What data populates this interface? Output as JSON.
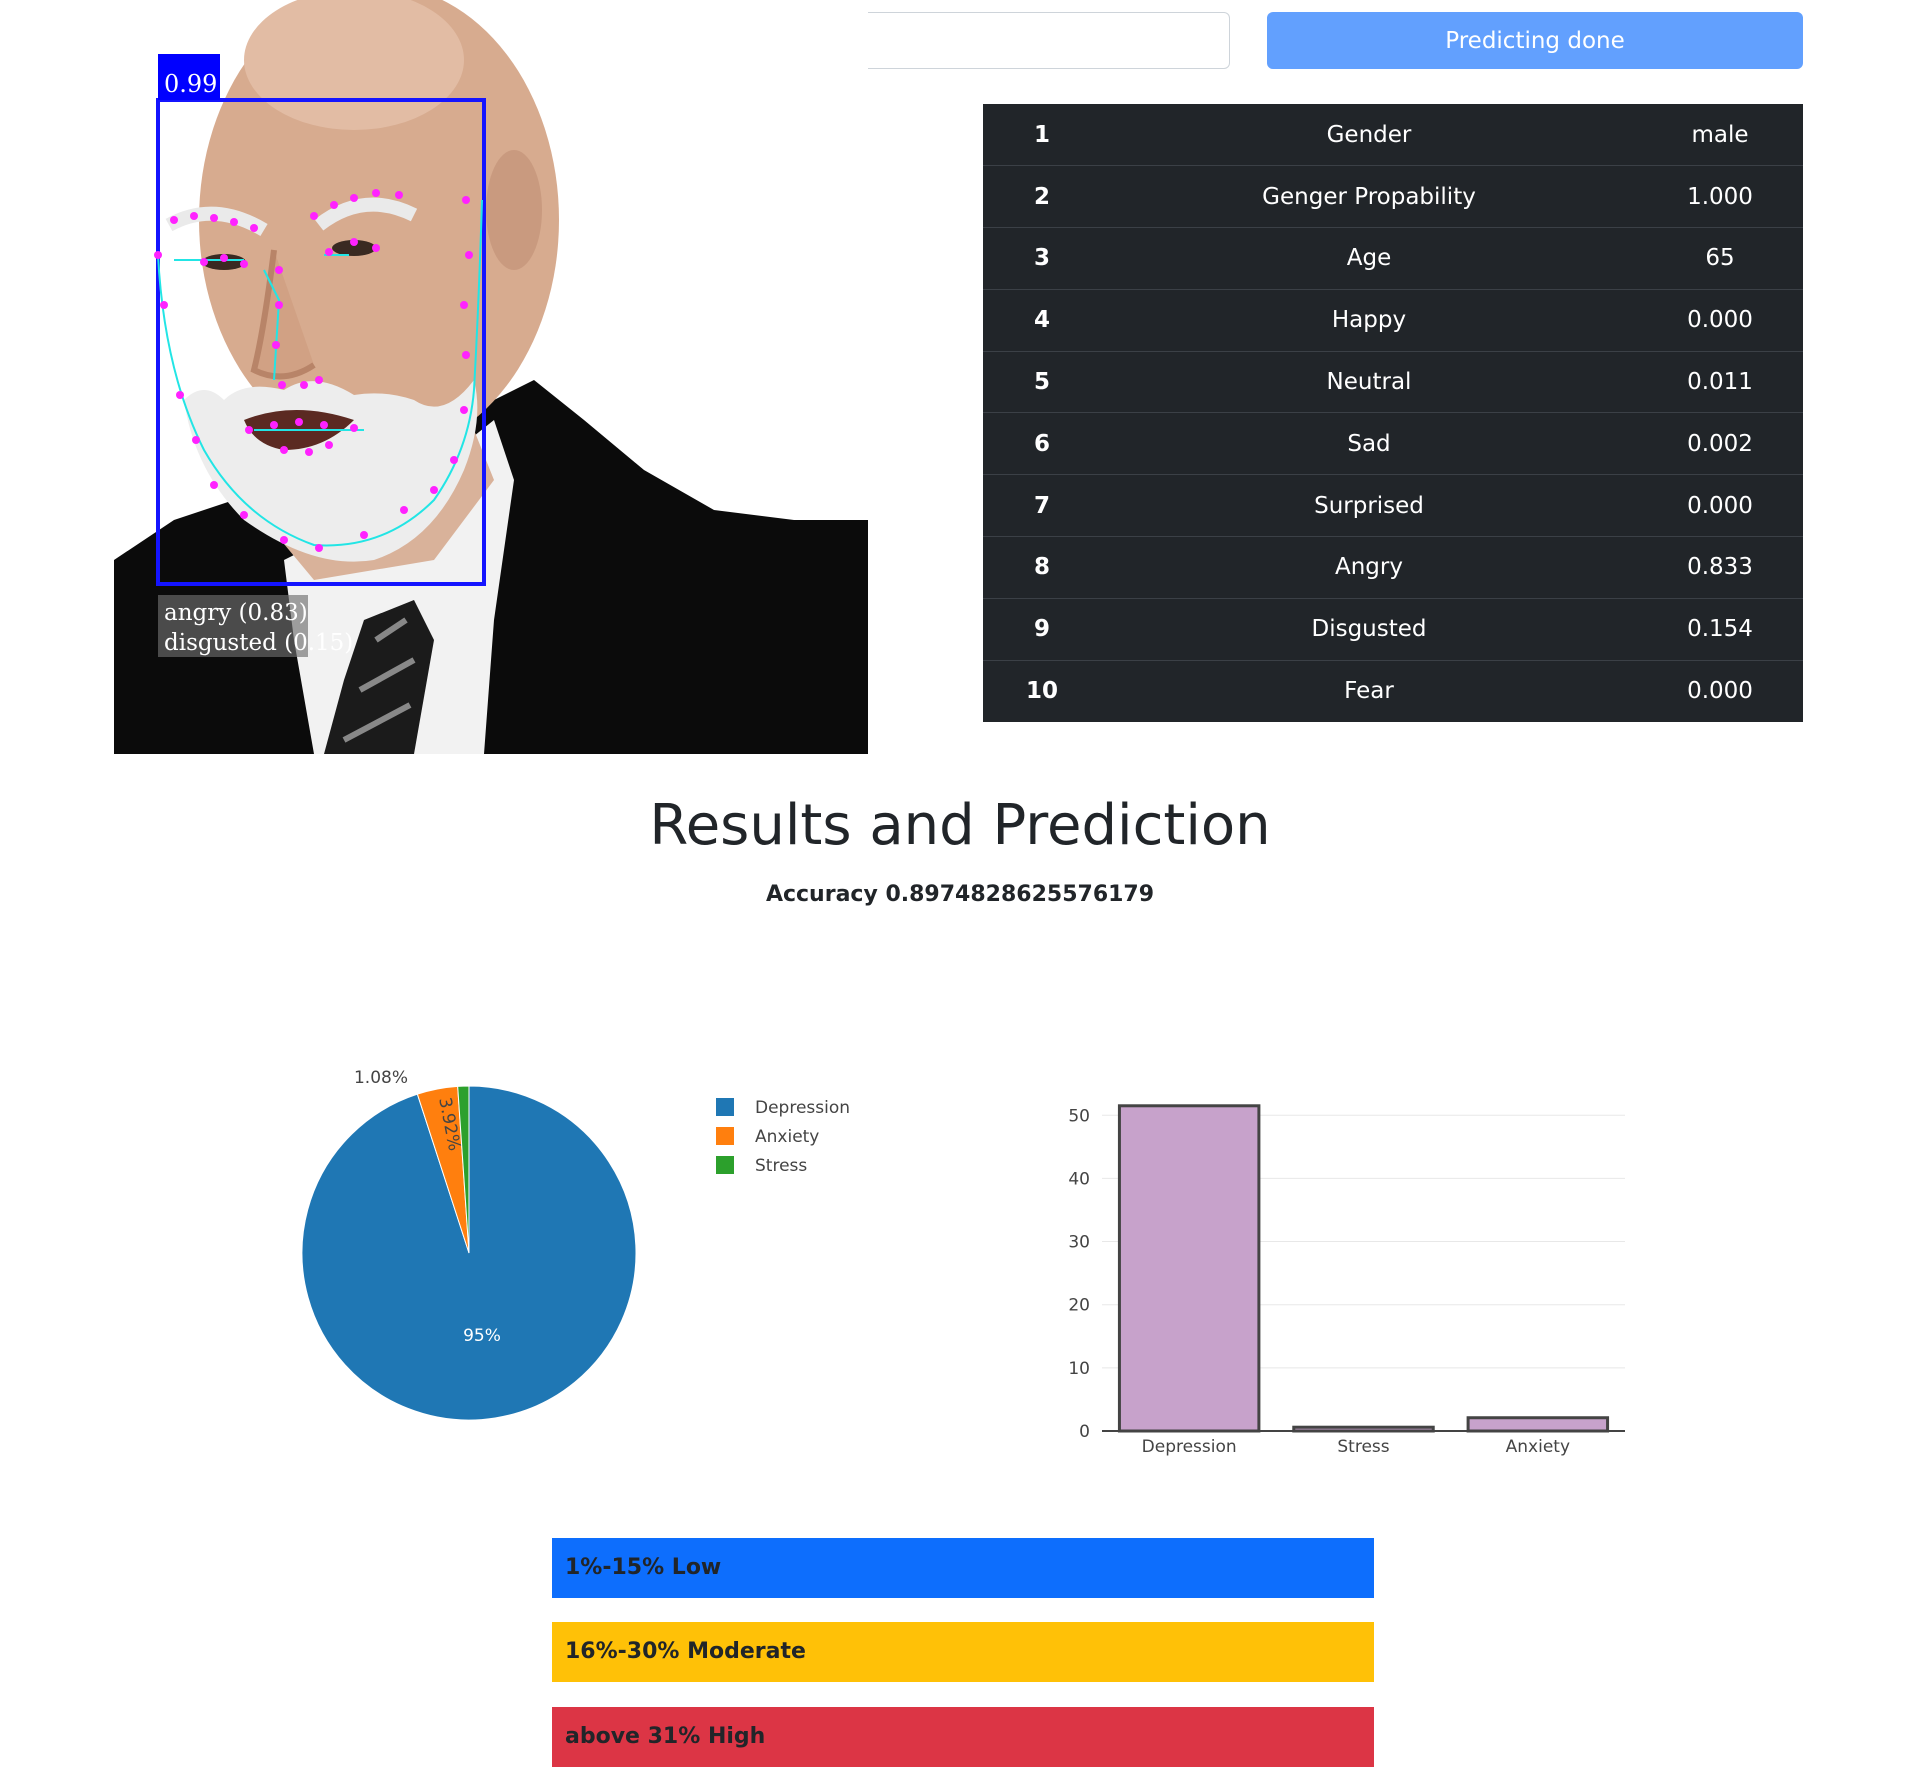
{
  "colors": {
    "primary_button": "#62a0fe",
    "table_bg": "#212529",
    "pie_depression": "#1f77b4",
    "pie_anxiety": "#ff7f0e",
    "pie_stress": "#2ca02c",
    "bar_fill": "#c7a2cb",
    "level_low": "#0d6efd",
    "level_moderate": "#ffc107",
    "level_high": "#dc3545"
  },
  "face_image": {
    "box_score": "0.99",
    "caption_line1": "angry (0.83)",
    "caption_line2": "disgusted (0.15)"
  },
  "controls": {
    "predict_button_label": "Predicting done"
  },
  "results_table": {
    "rows": [
      {
        "index": "1",
        "label": "Gender",
        "value": "male"
      },
      {
        "index": "2",
        "label": "Genger Propability",
        "value": "1.000"
      },
      {
        "index": "3",
        "label": "Age",
        "value": "65"
      },
      {
        "index": "4",
        "label": "Happy",
        "value": "0.000"
      },
      {
        "index": "5",
        "label": "Neutral",
        "value": "0.011"
      },
      {
        "index": "6",
        "label": "Sad",
        "value": "0.002"
      },
      {
        "index": "7",
        "label": "Surprised",
        "value": "0.000"
      },
      {
        "index": "8",
        "label": "Angry",
        "value": "0.833"
      },
      {
        "index": "9",
        "label": "Disgusted",
        "value": "0.154"
      },
      {
        "index": "10",
        "label": "Fear",
        "value": "0.000"
      }
    ]
  },
  "results": {
    "title": "Results and Prediction",
    "accuracy": "Accuracy 0.8974828625576179"
  },
  "chart_data": [
    {
      "type": "pie",
      "labels": [
        "Depression",
        "Anxiety",
        "Stress"
      ],
      "values": [
        95,
        3.92,
        1.08
      ],
      "value_labels": [
        "95%",
        "3.92%",
        "1.08%"
      ],
      "colors": [
        "#1f77b4",
        "#ff7f0e",
        "#2ca02c"
      ],
      "legend": "right"
    },
    {
      "type": "bar",
      "categories": [
        "Depression",
        "Stress",
        "Anxiety"
      ],
      "values": [
        51.5,
        0.6,
        2.1
      ],
      "yticks": [
        "0",
        "10",
        "20",
        "30",
        "40",
        "50"
      ],
      "ylim": [
        0,
        54
      ],
      "grid": true
    }
  ],
  "levels": [
    {
      "label": "1%-15% Low"
    },
    {
      "label": "16%-30% Moderate"
    },
    {
      "label": "above 31% High"
    }
  ]
}
